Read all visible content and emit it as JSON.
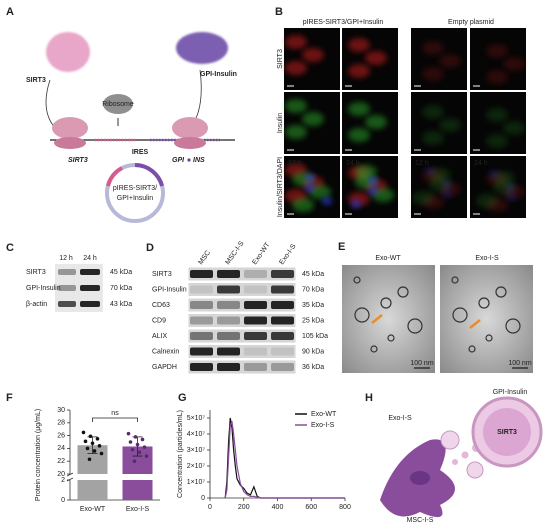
{
  "panel_a": {
    "label": "A",
    "sirt3_protein": "SIRT3",
    "ribosome": "Ribosome",
    "gpi_insulin": "GPI-Insulin",
    "sirt3_gene": "SIRT3",
    "ires": "IRES",
    "gpi_gene": "GPI",
    "ins_gene": "INS",
    "plasmid_label": [
      "pIRES-SIRT3/",
      "GPI+Insulin"
    ]
  },
  "panel_b": {
    "label": "B",
    "groups": [
      "pIRES-SIRT3/GPI+Insulin",
      "Empty plasmid"
    ],
    "rows": [
      "SIRT3",
      "Insulin",
      "Insulin/SIRT3/DAPI"
    ],
    "times": [
      "12 h",
      "24 h",
      "12 h",
      "24 h"
    ]
  },
  "panel_c": {
    "label": "C",
    "times": [
      "12 h",
      "24 h"
    ],
    "rows": [
      [
        "SIRT3",
        "45 kDa"
      ],
      [
        "GPI-Insulin",
        "70 kDa"
      ],
      [
        "β-actin",
        "43 kDa"
      ]
    ]
  },
  "panel_d": {
    "label": "D",
    "columns": [
      "MSC",
      "MSC-I-S",
      "Exo-WT",
      "Exo-I-S"
    ],
    "rows": [
      [
        "SIRT3",
        "45 kDa"
      ],
      [
        "GPI-Insulin",
        "70 kDa"
      ],
      [
        "CD63",
        "35 kDa"
      ],
      [
        "CD9",
        "25 kDa"
      ],
      [
        "ALIX",
        "105 kDa"
      ],
      [
        "Calnexin",
        "90 kDa"
      ],
      [
        "GAPDH",
        "36 kDa"
      ]
    ]
  },
  "panel_e": {
    "label": "E",
    "titles": [
      "Exo-WT",
      "Exo-I-S"
    ],
    "scale_bars": [
      "100 nm",
      "100 nm"
    ]
  },
  "panel_h": {
    "label": "H",
    "gpi_insulin": "GPI-Insulin",
    "exo": "Exo-I-S",
    "sirt3": "SIRT3",
    "cell": "MSC-I-S"
  },
  "chart_data": [
    {
      "type": "bar",
      "label": "F",
      "ylabel": "Protein concentration (μg/mL)",
      "categories": [
        "Exo-WT",
        "Exo-I-S"
      ],
      "values": [
        24.5,
        24.3
      ],
      "errors": [
        1.3,
        1.5
      ],
      "colors": [
        "#a3a3a3",
        "#8a4d9c"
      ],
      "points": [
        [
          26.5,
          25.9,
          25.5,
          25.1,
          24.8,
          24.4,
          24.0,
          23.6,
          23.2,
          22.3
        ],
        [
          26.3,
          25.8,
          25.4,
          25.0,
          24.6,
          24.2,
          23.8,
          23.4,
          22.8,
          22.0
        ]
      ],
      "annotation": "ns",
      "ylim": [
        0,
        30
      ],
      "y_break": [
        2,
        20
      ],
      "yticks": [
        0,
        2,
        20,
        22,
        24,
        26,
        28,
        30
      ]
    },
    {
      "type": "line",
      "label": "G",
      "ylabel": "Concentration (particles/mL)",
      "x": [
        90,
        100,
        110,
        120,
        130,
        140,
        150,
        160,
        180,
        200,
        220,
        240,
        260,
        280,
        300,
        800
      ],
      "series": [
        {
          "name": "Exo-WT",
          "color": "#111111",
          "values": [
            0,
            10000000,
            35000000,
            50000000,
            44000000,
            30000000,
            20000000,
            12000000,
            8000000,
            6000000,
            3000000,
            2000000,
            7000000,
            1000000,
            0,
            0
          ]
        },
        {
          "name": "Exo-I-S",
          "color": "#8a4d9c",
          "values": [
            0,
            5000000,
            25000000,
            45000000,
            48000000,
            40000000,
            30000000,
            20000000,
            9000000,
            4000000,
            2000000,
            1000000,
            1000000,
            500000,
            0,
            0
          ]
        }
      ],
      "xlim": [
        0,
        800
      ],
      "xticks": [
        0,
        200,
        400,
        600,
        800
      ],
      "ylim": [
        0,
        55000000
      ],
      "yticks": [
        0,
        {
          "value": 10000000,
          "label": "1×10⁷"
        },
        {
          "value": 20000000,
          "label": "2×10⁷"
        },
        {
          "value": 30000000,
          "label": "3×10⁷"
        },
        {
          "value": 40000000,
          "label": "4×10⁷"
        },
        {
          "value": 50000000,
          "label": "5×10⁷"
        }
      ],
      "legend": "upper right"
    }
  ]
}
